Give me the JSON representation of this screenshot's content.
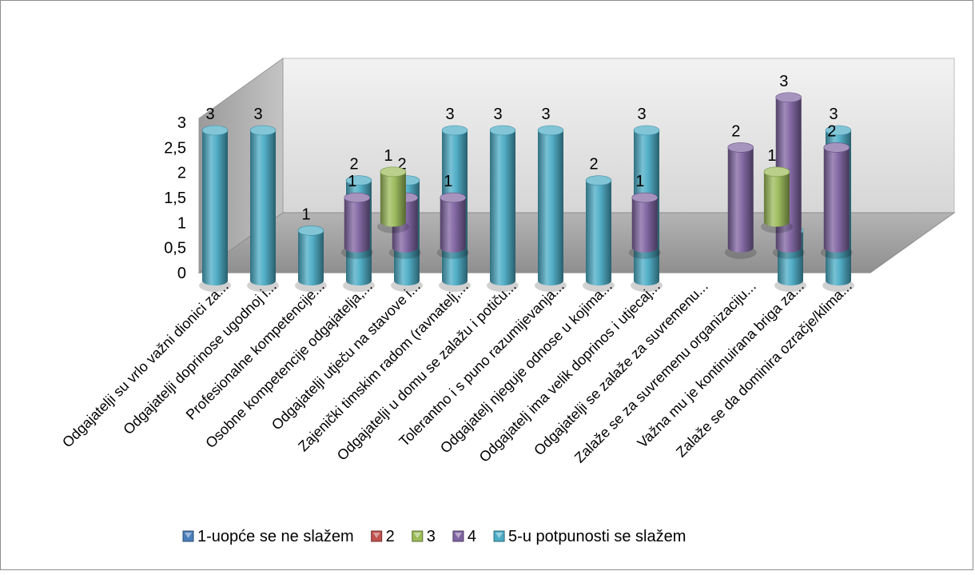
{
  "chart_data": {
    "type": "bar",
    "title": "",
    "xlabel": "",
    "ylabel": "",
    "ylim": [
      0,
      3
    ],
    "yticks": [
      "0",
      "0,5",
      "1",
      "1,5",
      "2",
      "2,5",
      "3"
    ],
    "grid": false,
    "legend_position": "bottom",
    "categories": [
      "Odgajatelji su vrlo važni dionici za...",
      "Odgajatelji doprinose ugodnoj i...",
      "Profesionalne kompetencije...",
      "Osobne kompetencije odgajatelja,...",
      "Odgajatelji utječu na stavove i...",
      "Zajenički timskim radom (ravnatelj,...",
      "Odgajatelji u domu se zalažu i potiču...",
      "Tolerantno i s puno razumijevanja...",
      "Odgajatelj njeguje odnose u kojima...",
      "Odgajatelj ima velik doprinos i utjecaj...",
      "Odgajatelji se zalaže za suvremenu...",
      "Zalaže se za suvremenu organizaciju...",
      "Važna mu je kontinuirana briga za...",
      "Zalaže se da dominira ozračje/klima..."
    ],
    "series": [
      {
        "name": "1-uopće se ne slažem",
        "color": "#4a7ebb",
        "values": [
          null,
          null,
          null,
          null,
          null,
          null,
          null,
          null,
          null,
          null,
          null,
          null,
          null,
          null
        ]
      },
      {
        "name": "2",
        "color": "#c0504d",
        "values": [
          null,
          null,
          null,
          null,
          null,
          null,
          null,
          null,
          null,
          null,
          null,
          null,
          null,
          null
        ]
      },
      {
        "name": "3",
        "color": "#9bbb59",
        "values": [
          null,
          null,
          1,
          null,
          null,
          null,
          null,
          null,
          null,
          null,
          1,
          null,
          null,
          null
        ]
      },
      {
        "name": "4",
        "color": "#8064a2",
        "values": [
          null,
          null,
          1,
          1,
          1,
          null,
          null,
          null,
          1,
          null,
          2,
          3,
          2,
          null
        ]
      },
      {
        "name": "5-u potpunosti se slažem",
        "color": "#4bacc6",
        "values": [
          3,
          3,
          1,
          2,
          2,
          3,
          3,
          3,
          2,
          3,
          null,
          null,
          1,
          3
        ]
      }
    ]
  }
}
